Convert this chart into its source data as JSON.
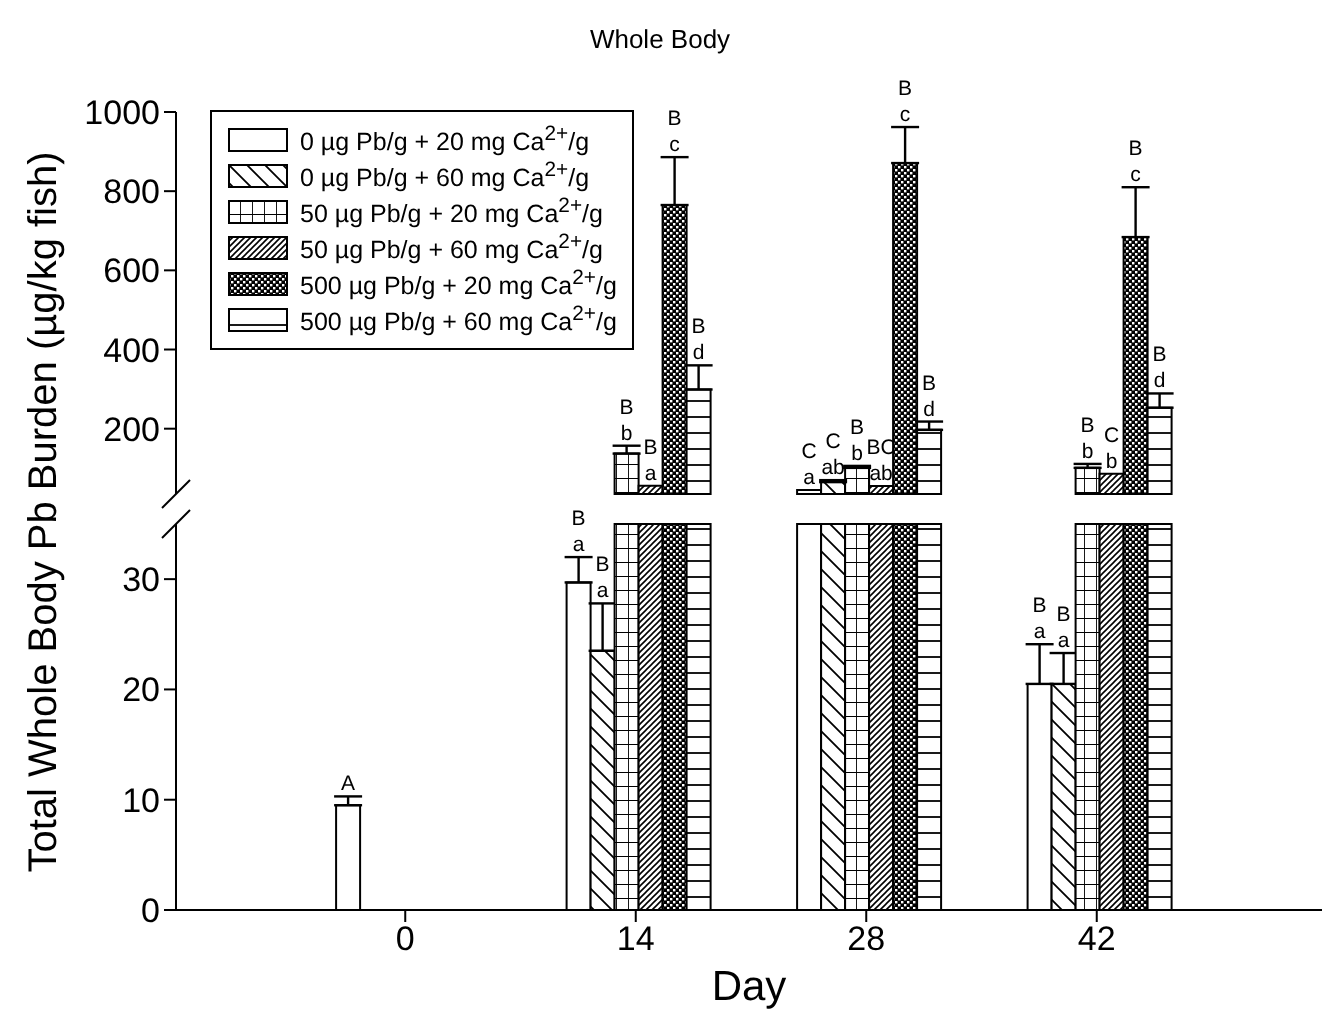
{
  "chart_data": [
    {
      "type": "bar",
      "title": "Whole Body",
      "categories": [
        "0",
        "14",
        "28",
        "42"
      ],
      "ylim": [
        35,
        1000
      ],
      "yticks": [
        200,
        400,
        600,
        800,
        1000
      ],
      "tick_labels": "y",
      "legend": "top left",
      "series": [
        {
          "name": "0 µg Pb/g + 20 mg Ca$^{2+}$/g",
          "color": "#000000",
          "values": [
            null,
            null,
            45,
            null
          ],
          "value_labels": [
            null,
            null,
            "C a",
            null
          ]
        },
        {
          "name": "0 µg Pb/g + 60 mg Ca$^{2+}$/g",
          "color": "#000000",
          "values": [
            null,
            null,
            65,
            null
          ],
          "errors": [
            null,
            null,
            [
              65,
              70
            ],
            null
          ],
          "value_labels": [
            null,
            null,
            "C ab",
            null
          ]
        },
        {
          "name": "50 µg Pb/g + 20 mg Ca$^{2+}$/g",
          "color": "#000000",
          "values": [
            null,
            137,
            101,
            101
          ],
          "errors": [
            null,
            [
              137,
              157
            ],
            [
              101,
              106
            ],
            [
              101,
              111
            ]
          ],
          "value_labels": [
            null,
            "B b",
            "B b",
            "B b"
          ]
        },
        {
          "name": "50 µg Pb/g + 60 mg Ca$^{2+}$/g",
          "color": "#000000",
          "values": [
            null,
            56,
            55,
            86
          ],
          "value_labels": [
            null,
            "B a",
            "BC ab",
            "C b"
          ]
        },
        {
          "name": "500 µg Pb/g + 20 mg Ca$^{2+}$/g",
          "color": "#000000",
          "values": [
            null,
            765,
            871,
            684
          ],
          "errors": [
            null,
            [
              765,
              886
            ],
            [
              871,
              962
            ],
            [
              684,
              810
            ]
          ],
          "value_labels": [
            null,
            "B c",
            "B c",
            "B c"
          ]
        },
        {
          "name": "500 µg Pb/g + 60 mg Ca$^{2+}$/g",
          "color": "#000000",
          "values": [
            null,
            299,
            197,
            253
          ],
          "errors": [
            null,
            [
              299,
              360
            ],
            [
              197,
              218
            ],
            [
              253,
              289
            ]
          ],
          "value_labels": [
            null,
            "B d",
            "B d",
            "B d"
          ]
        }
      ]
    },
    {
      "type": "bar",
      "xlabel": "Day",
      "ylabel": "Total Whole Body Pb Burden (µg/kg fish)",
      "categories": [
        "0",
        "14",
        "28",
        "42"
      ],
      "ylim": [
        0,
        35
      ],
      "yticks": [
        0,
        10,
        20,
        30
      ],
      "series": [
        {
          "color": "#000000",
          "values": [
            9.5,
            29.7,
            null,
            20.5
          ],
          "errors": [
            [
              9.5,
              10.3
            ],
            [
              29.7,
              32
            ],
            null,
            [
              20.5,
              24.1
            ]
          ],
          "value_labels": [
            "A",
            "B a",
            null,
            "B a"
          ]
        },
        {
          "color": "#000000",
          "values": [
            null,
            23.5,
            null,
            20.5
          ],
          "errors": [
            null,
            [
              23.5,
              27.8
            ],
            null,
            [
              20.5,
              23.3
            ]
          ],
          "value_labels": [
            null,
            "B a",
            null,
            "B a"
          ]
        },
        {
          "color": "#000000",
          "values": [
            null,
            null,
            null,
            null
          ]
        },
        {
          "color": "#000000",
          "values": [
            null,
            null,
            null,
            null
          ]
        },
        {
          "color": "#000000",
          "values": [
            null,
            null,
            null,
            null
          ]
        },
        {
          "color": "#000000",
          "values": [
            null,
            null,
            null,
            null
          ]
        }
      ]
    }
  ]
}
